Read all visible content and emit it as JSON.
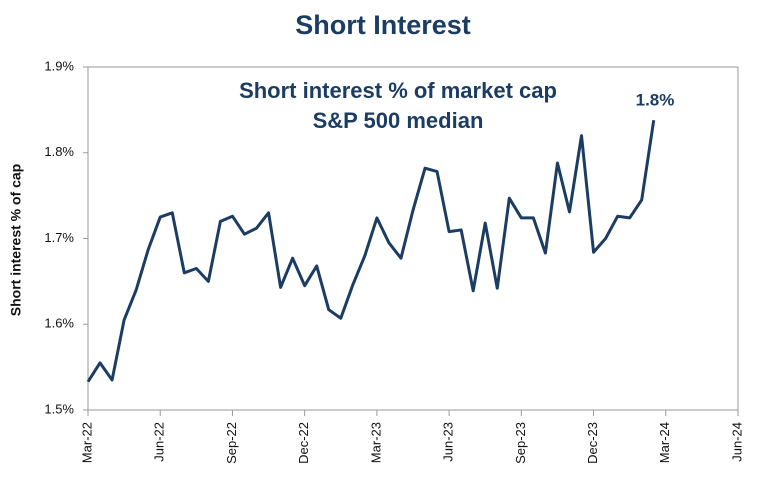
{
  "chart_data": {
    "type": "line",
    "title": "Short Interest",
    "annotations": [
      "Short interest % of market cap",
      "S&P 500 median",
      "1.8%"
    ],
    "y_label": "Short interest % of cap",
    "x": [
      0,
      0.5,
      1,
      1.5,
      2,
      2.5,
      3,
      3.5,
      4,
      4.5,
      5,
      5.5,
      6,
      6.5,
      7,
      7.5,
      8,
      8.5,
      9,
      9.5,
      10,
      10.5,
      11,
      11.5,
      12,
      12.5,
      13,
      13.5,
      14,
      14.5,
      15,
      15.5,
      16,
      16.5,
      17,
      17.5,
      18,
      18.5,
      19,
      19.5,
      20,
      20.5,
      21,
      21.5,
      22,
      22.5,
      23,
      23.5
    ],
    "values": [
      1.533,
      1.555,
      1.535,
      1.605,
      1.64,
      1.687,
      1.725,
      1.73,
      1.66,
      1.665,
      1.65,
      1.72,
      1.726,
      1.705,
      1.712,
      1.73,
      1.643,
      1.677,
      1.645,
      1.668,
      1.617,
      1.607,
      1.646,
      1.68,
      1.724,
      1.695,
      1.677,
      1.733,
      1.782,
      1.778,
      1.708,
      1.71,
      1.639,
      1.718,
      1.642,
      1.747,
      1.724,
      1.724,
      1.683,
      1.788,
      1.731,
      1.82,
      1.684,
      1.7,
      1.726,
      1.724,
      1.745,
      1.838
    ],
    "color": "#1c3d63",
    "xlim": [
      0,
      27
    ],
    "xticks": [
      {
        "value": 0,
        "label": "Mar-22"
      },
      {
        "value": 3,
        "label": "Jun-22"
      },
      {
        "value": 6,
        "label": "Sep-22"
      },
      {
        "value": 9,
        "label": "Dec-22"
      },
      {
        "value": 12,
        "label": "Mar-23"
      },
      {
        "value": 15,
        "label": "Jun-23"
      },
      {
        "value": 18,
        "label": "Sep-23"
      },
      {
        "value": 21,
        "label": "Dec-23"
      },
      {
        "value": 24,
        "label": "Mar-24"
      },
      {
        "value": 27,
        "label": "Jun-24"
      }
    ],
    "ylim": [
      1.5,
      1.9
    ],
    "yticks": [
      {
        "value": 1.5,
        "label": "1.5%"
      },
      {
        "value": 1.6,
        "label": "1.6%"
      },
      {
        "value": 1.7,
        "label": "1.7%"
      },
      {
        "value": 1.8,
        "label": "1.8%"
      },
      {
        "value": 1.9,
        "label": "1.9%"
      }
    ]
  }
}
